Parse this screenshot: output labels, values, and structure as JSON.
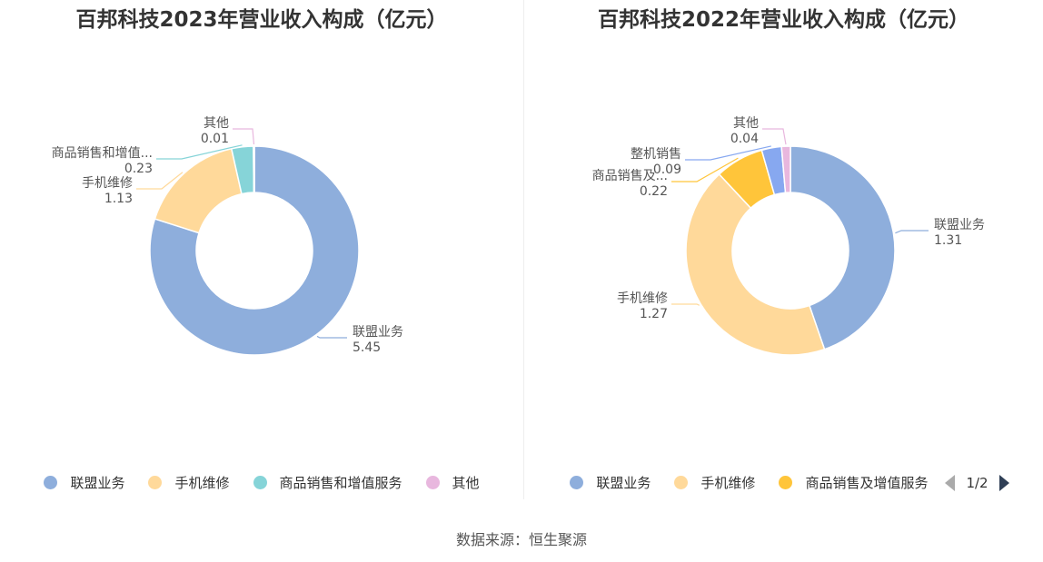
{
  "chart_data": [
    {
      "type": "pie",
      "variant": "donut",
      "title": "百邦科技2023年营业收入构成（亿元）",
      "categories": [
        "联盟业务",
        "手机维修",
        "商品销售和增值服务",
        "其他"
      ],
      "display_labels": [
        "联盟业务",
        "手机维修",
        "商品销售和增值...",
        "其他"
      ],
      "values": [
        5.45,
        1.13,
        0.23,
        0.01
      ],
      "value_labels": [
        "5.45",
        "1.13",
        "0.23",
        "0.01"
      ],
      "colors": [
        "#8eaedc",
        "#ffd99a",
        "#86d4d8",
        "#e8b7de"
      ],
      "legend": {
        "position": "bottom",
        "items": [
          "联盟业务",
          "手机维修",
          "商品销售和增值服务",
          "其他"
        ]
      }
    },
    {
      "type": "pie",
      "variant": "donut",
      "title": "百邦科技2022年营业收入构成（亿元）",
      "categories": [
        "联盟业务",
        "手机维修",
        "商品销售及增值服务",
        "整机销售",
        "其他"
      ],
      "display_labels": [
        "联盟业务",
        "手机维修",
        "商品销售及...",
        "整机销售",
        "其他"
      ],
      "values": [
        1.31,
        1.27,
        0.22,
        0.09,
        0.04
      ],
      "value_labels": [
        "1.31",
        "1.27",
        "0.22",
        "0.09",
        "0.04"
      ],
      "colors": [
        "#8eaedc",
        "#ffd99a",
        "#ffc53a",
        "#87a8f0",
        "#e8b7de"
      ],
      "legend": {
        "position": "bottom",
        "items": [
          "联盟业务",
          "手机维修",
          "商品销售及增值服务"
        ],
        "pager": "1/2"
      }
    }
  ],
  "footer": {
    "source": "数据来源：恒生聚源"
  }
}
